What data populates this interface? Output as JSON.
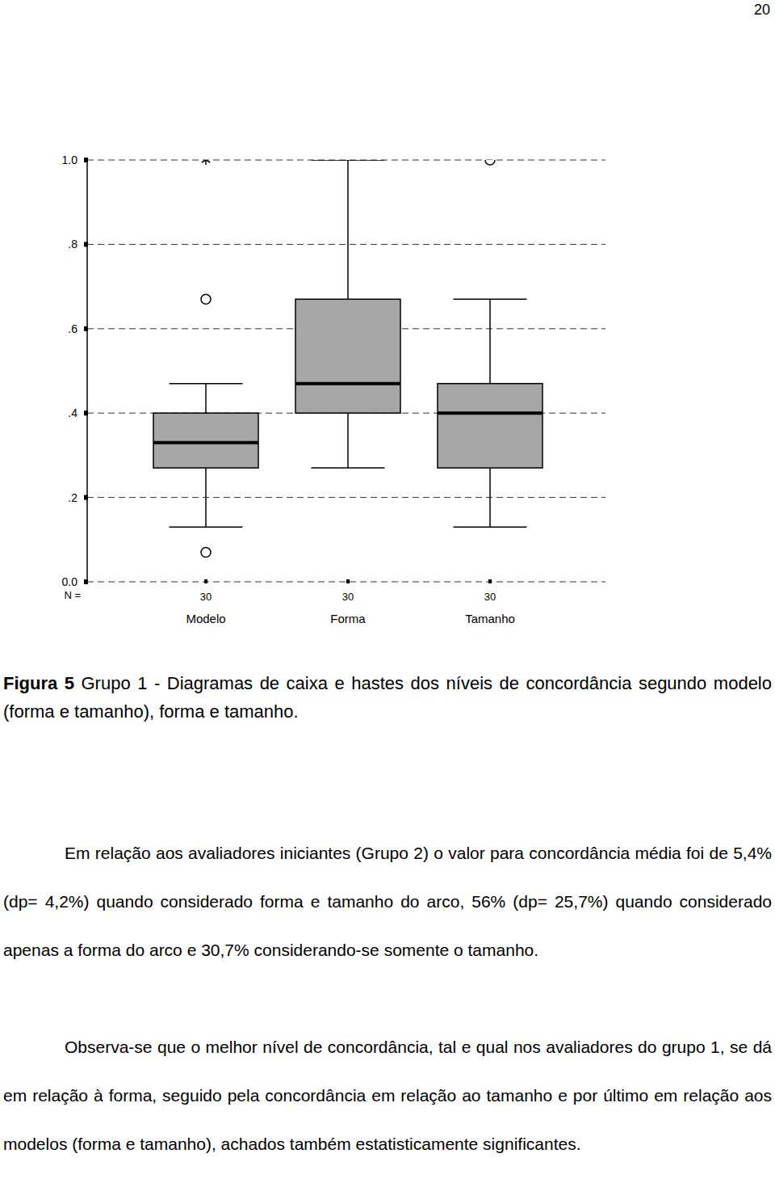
{
  "page_number": "20",
  "chart_data": {
    "type": "box",
    "categories": [
      "Modelo",
      "Forma",
      "Tamanho"
    ],
    "boxes": [
      {
        "min": 0.13,
        "q1": 0.27,
        "median": 0.33,
        "q3": 0.4,
        "max": 0.47,
        "outliers": [
          {
            "value": 1.0,
            "marker": "star"
          },
          {
            "value": 0.67,
            "marker": "circle"
          },
          {
            "value": 0.07,
            "marker": "circle"
          }
        ]
      },
      {
        "min": 0.27,
        "q1": 0.4,
        "median": 0.47,
        "q3": 0.67,
        "max": 1.0,
        "outliers": []
      },
      {
        "min": 0.13,
        "q1": 0.27,
        "median": 0.4,
        "q3": 0.47,
        "max": 0.67,
        "outliers": [
          {
            "value": 1.0,
            "marker": "circle"
          }
        ]
      }
    ],
    "n_label": "N =",
    "n": [
      30,
      30,
      30
    ],
    "ylim": [
      0,
      1
    ],
    "yticks": [
      {
        "value": 0,
        "label": "0.0"
      },
      {
        "value": 0.2,
        "label": ".2"
      },
      {
        "value": 0.4,
        "label": ".4"
      },
      {
        "value": 0.6,
        "label": ".6"
      },
      {
        "value": 0.8,
        "label": ".8"
      },
      {
        "value": 1,
        "label": "1.0"
      }
    ],
    "grid": true,
    "color": "#a6a6a6"
  },
  "caption": {
    "label": "Figura 5",
    "text": "Grupo 1 - Diagramas de caixa e hastes dos níveis de concordância segundo modelo (forma e tamanho), forma e tamanho."
  },
  "paragraphs": [
    "Em relação aos avaliadores iniciantes (Grupo 2) o valor para concordância média foi de 5,4% (dp= 4,2%) quando considerado forma e tamanho do arco, 56% (dp= 25,7%) quando considerado apenas a forma do arco e 30,7% considerando-se somente o tamanho.",
    "Observa-se que o melhor nível de concordância, tal e qual nos avaliadores do grupo 1, se dá em relação à forma, seguido pela concordância em relação ao tamanho e por último em relação aos modelos (forma e tamanho), achados também estatisticamente significantes."
  ]
}
